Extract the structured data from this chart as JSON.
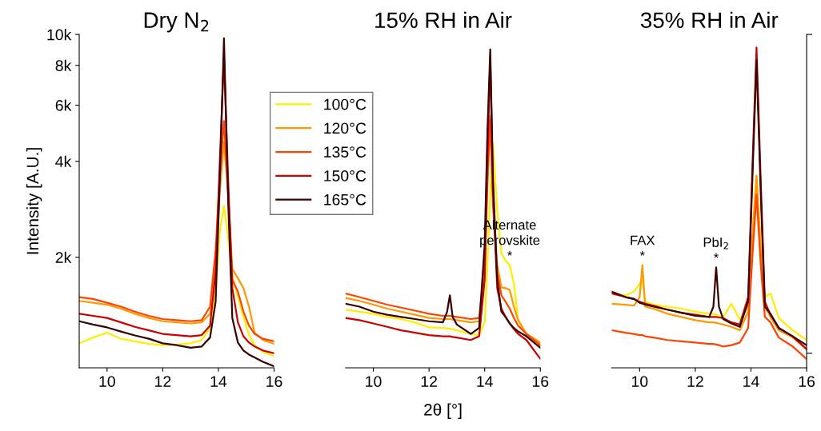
{
  "chart_data": [
    {
      "type": "line",
      "title": "Dry N$_{2}$",
      "ylabel": "Intensity [A.U.]",
      "log": "y",
      "grid": false,
      "legend": "top right",
      "marker": "none",
      "line_style": "solid",
      "xlim": [
        9,
        16
      ],
      "xticks": [
        10,
        12,
        14,
        16
      ],
      "ylim": [
        900,
        10000
      ],
      "yticks": [
        {
          "value": 2000,
          "label": "2k"
        },
        {
          "value": 4000,
          "label": "4k"
        },
        {
          "value": 6000,
          "label": "6k"
        },
        {
          "value": 8000,
          "label": "8k"
        },
        {
          "value": 10000,
          "label": "10k"
        }
      ],
      "x": [
        9,
        9.5,
        10,
        10.5,
        11,
        11.5,
        12,
        12.5,
        13,
        13.4,
        13.7,
        13.9,
        14.05,
        14.2,
        14.35,
        14.5,
        14.7,
        14.9,
        15.1,
        15.3,
        15.6,
        16
      ],
      "series": [
        {
          "name": "100°C",
          "color": "#ffee00",
          "values": [
            1074,
            1120,
            1160,
            1110,
            1090,
            1070,
            1060,
            1065,
            1074,
            1100,
            1200,
            1580,
            2400,
            2900,
            2300,
            1750,
            1500,
            1300,
            1140,
            1060,
            1010,
            980
          ]
        },
        {
          "name": "120°C",
          "color": "#ff9900",
          "values": [
            1460,
            1440,
            1420,
            1380,
            1330,
            1290,
            1260,
            1250,
            1240,
            1250,
            1330,
            1900,
            3200,
            4600,
            3150,
            1840,
            1720,
            1600,
            1400,
            1160,
            1100,
            1070
          ]
        },
        {
          "name": "135°C",
          "color": "#ff4400",
          "values": [
            1500,
            1480,
            1440,
            1400,
            1350,
            1310,
            1280,
            1270,
            1260,
            1270,
            1400,
            2100,
            3600,
            5350,
            3200,
            1700,
            1560,
            1350,
            1220,
            1150,
            1110,
            1090
          ]
        },
        {
          "name": "150°C",
          "color": "#cc0000",
          "values": [
            1330,
            1310,
            1290,
            1250,
            1210,
            1180,
            1150,
            1140,
            1130,
            1140,
            1220,
            1800,
            4000,
            8500,
            3500,
            1600,
            1250,
            1130,
            1080,
            1050,
            1020,
            1000
          ]
        },
        {
          "name": "165°C",
          "color": "#3a0000",
          "values": [
            1260,
            1230,
            1205,
            1170,
            1137,
            1110,
            1074,
            1060,
            1040,
            1050,
            1120,
            1450,
            3500,
            9730,
            3000,
            1290,
            1080,
            1020,
            990,
            970,
            940,
            910
          ]
        }
      ]
    },
    {
      "type": "line",
      "title": "15% RH in Air",
      "xlabel": "2θ [°]",
      "log": "y",
      "grid": false,
      "marker": "none",
      "line_style": "solid",
      "tick_labels": "x",
      "xlim": [
        9,
        16
      ],
      "xticks": [
        10,
        12,
        14,
        16
      ],
      "ylim": [
        900,
        10000
      ],
      "x": [
        9,
        9.5,
        10,
        10.5,
        11,
        11.5,
        12,
        12.5,
        12.65,
        12.75,
        12.85,
        13,
        13.5,
        13.8,
        14.0,
        14.1,
        14.2,
        14.3,
        14.45,
        14.6,
        14.75,
        14.9,
        15.05,
        15.2,
        15.5,
        16
      ],
      "annotations": [
        {
          "text": "Alternate\nperovskite\n*",
          "x": 14.9,
          "y": 1890
        }
      ],
      "series": [
        {
          "color": "#ffee00",
          "values": [
            1370,
            1350,
            1330,
            1300,
            1280,
            1250,
            1205,
            1200,
            1195,
            1195,
            1190,
            1180,
            1150,
            1140,
            1250,
            1900,
            3200,
            4560,
            2800,
            2060,
            1950,
            1890,
            1650,
            1276,
            1137,
            1060
          ]
        },
        {
          "color": "#ff9900",
          "values": [
            1490,
            1460,
            1420,
            1380,
            1350,
            1320,
            1290,
            1280,
            1280,
            1280,
            1275,
            1270,
            1250,
            1260,
            1800,
            3400,
            5540,
            3000,
            1900,
            1610,
            1600,
            1580,
            1400,
            1270,
            1150,
            1080
          ]
        },
        {
          "color": "#ff4400",
          "values": [
            1540,
            1500,
            1460,
            1420,
            1390,
            1360,
            1330,
            1310,
            1310,
            1310,
            1305,
            1300,
            1280,
            1290,
            1900,
            3500,
            5400,
            2900,
            1800,
            1520,
            1450,
            1380,
            1290,
            1220,
            1150,
            1060
          ]
        },
        {
          "color": "#cc0000",
          "values": [
            1290,
            1270,
            1240,
            1210,
            1180,
            1160,
            1140,
            1130,
            1130,
            1130,
            1125,
            1120,
            1100,
            1130,
            1700,
            4000,
            8500,
            3200,
            1600,
            1380,
            1300,
            1240,
            1190,
            1150,
            1100,
            960
          ]
        },
        {
          "color": "#3a0000",
          "values": [
            1430,
            1400,
            1350,
            1320,
            1300,
            1280,
            1260,
            1250,
            1350,
            1520,
            1300,
            1230,
            1150,
            1200,
            2200,
            5000,
            8980,
            3500,
            1700,
            1350,
            1300,
            1240,
            1200,
            1170,
            1130,
            1040
          ]
        }
      ]
    },
    {
      "type": "line",
      "title": "35% RH in Air",
      "log": "y",
      "grid": false,
      "marker": "none",
      "line_style": "solid",
      "tick_labels": "x",
      "xlim": [
        9,
        16
      ],
      "xticks": [
        10,
        12,
        14,
        16
      ],
      "ylim": [
        900,
        10000
      ],
      "x": [
        9,
        9.5,
        9.8,
        10.0,
        10.1,
        10.2,
        10.5,
        11,
        11.5,
        12,
        12.5,
        12.65,
        12.75,
        12.85,
        13,
        13.3,
        13.6,
        13.9,
        14.05,
        14.2,
        14.35,
        14.5,
        14.7,
        15,
        15.5,
        16
      ],
      "annotations": [
        {
          "text": "FAX\n*",
          "x": 10.1,
          "y": 1890
        },
        {
          "text": "PbI$_{2}$\n*",
          "x": 12.75,
          "y": 1860
        }
      ],
      "series": [
        {
          "color": "#ffee00",
          "values": [
            1540,
            1520,
            1560,
            1650,
            1700,
            1450,
            1420,
            1400,
            1380,
            1350,
            1330,
            1330,
            1320,
            1310,
            1300,
            1430,
            1276,
            1400,
            2300,
            3610,
            2200,
            1500,
            1540,
            1290,
            1180,
            1100
          ]
        },
        {
          "color": "#ff9900",
          "values": [
            1430,
            1420,
            1410,
            1500,
            1890,
            1400,
            1380,
            1330,
            1300,
            1270,
            1250,
            1250,
            1245,
            1240,
            1230,
            1210,
            1180,
            1350,
            2300,
            3600,
            2100,
            1400,
            1300,
            1180,
            1120,
            1030
          ]
        },
        {
          "color": "#ff4400",
          "values": [
            1180,
            1160,
            1150,
            1140,
            1140,
            1130,
            1120,
            1100,
            1090,
            1080,
            1070,
            1070,
            1065,
            1060,
            1050,
            1060,
            1080,
            1200,
            2000,
            3150,
            1900,
            1300,
            1250,
            1120,
            1050,
            960
          ]
        },
        {
          "color": "#cc0000",
          "values": [
            1540,
            1500,
            1480,
            1450,
            1440,
            1430,
            1410,
            1370,
            1340,
            1320,
            1300,
            1300,
            1300,
            1295,
            1290,
            1250,
            1230,
            1500,
            3800,
            9100,
            3500,
            1450,
            1320,
            1200,
            1130,
            1030
          ]
        },
        {
          "color": "#3a0000",
          "values": [
            1560,
            1500,
            1480,
            1440,
            1430,
            1420,
            1400,
            1370,
            1340,
            1310,
            1300,
            1400,
            1860,
            1400,
            1280,
            1240,
            1210,
            1450,
            3500,
            8320,
            3200,
            1400,
            1330,
            1200,
            1130,
            1060
          ]
        }
      ]
    }
  ]
}
